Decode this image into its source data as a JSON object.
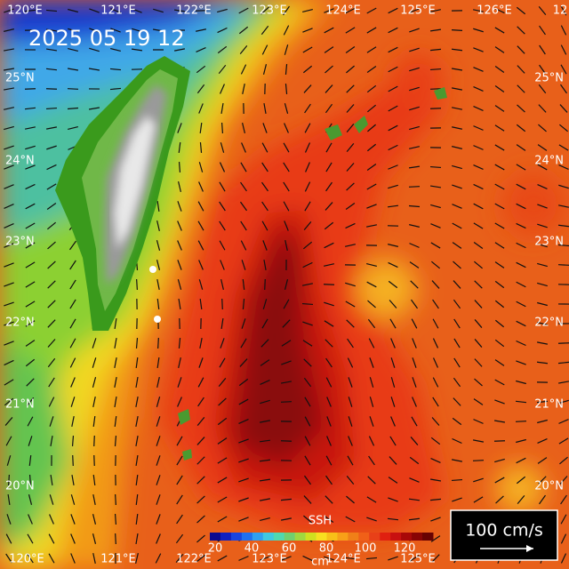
{
  "timestamp": "2025 05 19 12",
  "lon_labels_top": [
    "120°E",
    "121°E",
    "122°E",
    "123°E",
    "124°E",
    "125°E",
    "126°E",
    "12"
  ],
  "lon_labels_bottom": [
    "120°E",
    "121°E",
    "122°E",
    "123°E",
    "124°E",
    "125°E"
  ],
  "lat_labels_left": [
    "25°N",
    "24°N",
    "23°N",
    "22°N",
    "21°N",
    "20°N"
  ],
  "lat_labels_right": [
    "25°N",
    "24°N",
    "23°N",
    "22°N",
    "21°N",
    "20°N"
  ],
  "legend": {
    "title": "SSH",
    "ticks": [
      20,
      40,
      60,
      80,
      100,
      120
    ],
    "unit": "cm"
  },
  "scale": {
    "label": "100 cm/s"
  }
}
